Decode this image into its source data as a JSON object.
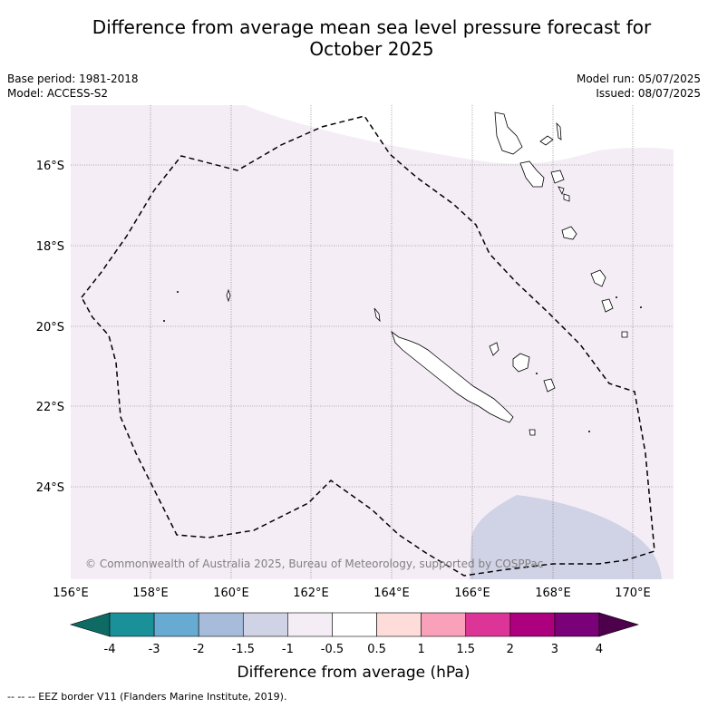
{
  "title": {
    "line1": "Difference from average mean sea level pressure forecast for",
    "line2": "October 2025"
  },
  "meta": {
    "base_period": "Base period: 1981-2018",
    "model": "Model: ACCESS-S2",
    "model_run": "Model run: 05/07/2025",
    "issued": "Issued: 08/07/2025"
  },
  "map": {
    "lon_ticks": [
      "156°E",
      "158°E",
      "160°E",
      "162°E",
      "164°E",
      "166°E",
      "168°E",
      "170°E"
    ],
    "lat_ticks": [
      "16°S",
      "18°S",
      "20°S",
      "22°S",
      "24°S"
    ],
    "copyright": "© Commonwealth of Australia 2025, Bureau of Meteorology, supported by COSPPac",
    "colors": {
      "land_outline": "#000000",
      "near_zero_purple": "#f4edf5",
      "minus_1_5_to_minus_1": "#d0d2e5",
      "ocean": "#ffffff"
    }
  },
  "colorbar": {
    "labels": [
      "-4",
      "-3",
      "-2",
      "-1.5",
      "-1",
      "-0.5",
      "0.5",
      "1",
      "1.5",
      "2",
      "3",
      "4"
    ],
    "colors": [
      "#0d6b63",
      "#1a9199",
      "#67aad2",
      "#a7bcdb",
      "#d0d2e5",
      "#f4edf5",
      "#ffffff",
      "#fedcda",
      "#f9a0ba",
      "#dd3597",
      "#ac007e",
      "#7a0177",
      "#4d004b"
    ],
    "label": "Difference from average (hPa)"
  },
  "footer": "--  --  -- EEZ border V11 (Flanders Marine Institute, 2019)."
}
